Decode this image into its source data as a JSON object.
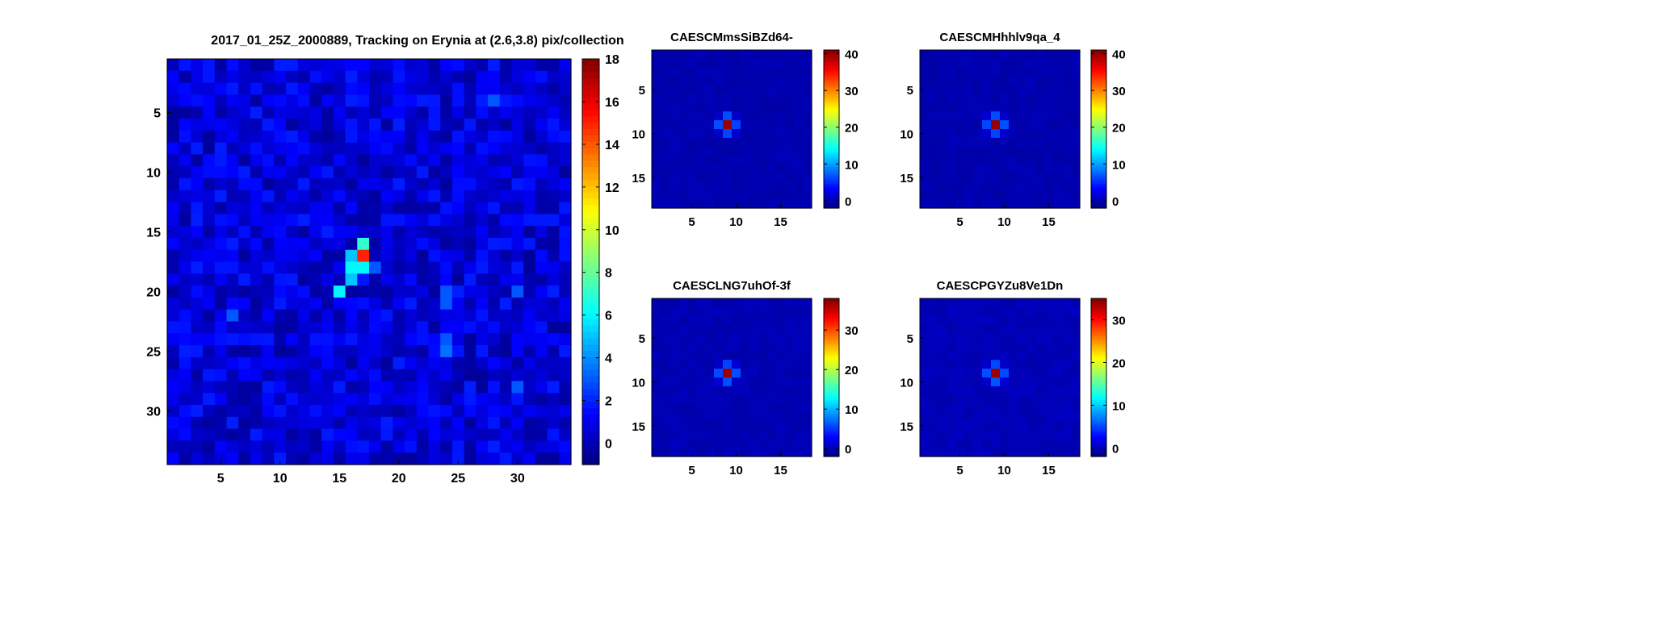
{
  "chart_data": [
    {
      "type": "heatmap",
      "title": "2017_01_25Z_2000889, Tracking on Erynia at (2.6,3.8) pix/collection",
      "grid_size": 34,
      "xticks": [
        5,
        10,
        15,
        20,
        25,
        30
      ],
      "yticks": [
        5,
        10,
        15,
        20,
        25,
        30
      ],
      "colorbar_ticks": [
        0,
        2,
        4,
        6,
        8,
        10,
        12,
        14,
        16,
        18
      ],
      "clim": [
        -1,
        18
      ],
      "background_level": 0.6,
      "noise_amplitude": 1.2,
      "hotspots": [
        {
          "x": 17,
          "y": 16,
          "value": 7
        },
        {
          "x": 17,
          "y": 17,
          "value": 15
        },
        {
          "x": 16,
          "y": 17,
          "value": 5
        },
        {
          "x": 16,
          "y": 18,
          "value": 6
        },
        {
          "x": 17,
          "y": 18,
          "value": 6
        },
        {
          "x": 18,
          "y": 18,
          "value": 3
        },
        {
          "x": 16,
          "y": 19,
          "value": 5
        },
        {
          "x": 15,
          "y": 20,
          "value": 6
        },
        {
          "x": 24,
          "y": 20,
          "value": 3
        },
        {
          "x": 24,
          "y": 21,
          "value": 3
        },
        {
          "x": 24,
          "y": 24,
          "value": 3
        },
        {
          "x": 24,
          "y": 25,
          "value": 3.5
        },
        {
          "x": 28,
          "y": 4,
          "value": 3
        },
        {
          "x": 6,
          "y": 22,
          "value": 3
        },
        {
          "x": 30,
          "y": 20,
          "value": 3
        },
        {
          "x": 30,
          "y": 28,
          "value": 3
        }
      ]
    },
    {
      "type": "heatmap",
      "title": "CAESCMmsSiBZd64-",
      "grid_size": 18,
      "xticks": [
        5,
        10,
        15
      ],
      "yticks": [
        5,
        10,
        15
      ],
      "colorbar_ticks": [
        0,
        10,
        20,
        30,
        40
      ],
      "clim": [
        -2,
        41
      ],
      "peak": {
        "x": 9,
        "y": 9,
        "value": 40
      }
    },
    {
      "type": "heatmap",
      "title": "CAESCMHhhlv9qa_4",
      "grid_size": 18,
      "xticks": [
        5,
        10,
        15
      ],
      "yticks": [
        5,
        10,
        15
      ],
      "colorbar_ticks": [
        0,
        10,
        20,
        30,
        40
      ],
      "clim": [
        -2,
        41
      ],
      "peak": {
        "x": 9,
        "y": 9,
        "value": 40
      }
    },
    {
      "type": "heatmap",
      "title": "CAESCLNG7uhOf-3f",
      "grid_size": 18,
      "xticks": [
        5,
        10,
        15
      ],
      "yticks": [
        5,
        10,
        15
      ],
      "colorbar_ticks": [
        0,
        10,
        20,
        30
      ],
      "clim": [
        -2,
        38
      ],
      "peak": {
        "x": 9,
        "y": 9,
        "value": 37
      }
    },
    {
      "type": "heatmap",
      "title": "CAESCPGYZu8Ve1Dn",
      "grid_size": 18,
      "xticks": [
        5,
        10,
        15
      ],
      "yticks": [
        5,
        10,
        15
      ],
      "colorbar_ticks": [
        0,
        10,
        20,
        30
      ],
      "clim": [
        -2,
        35
      ],
      "peak": {
        "x": 9,
        "y": 9,
        "value": 34
      }
    }
  ]
}
